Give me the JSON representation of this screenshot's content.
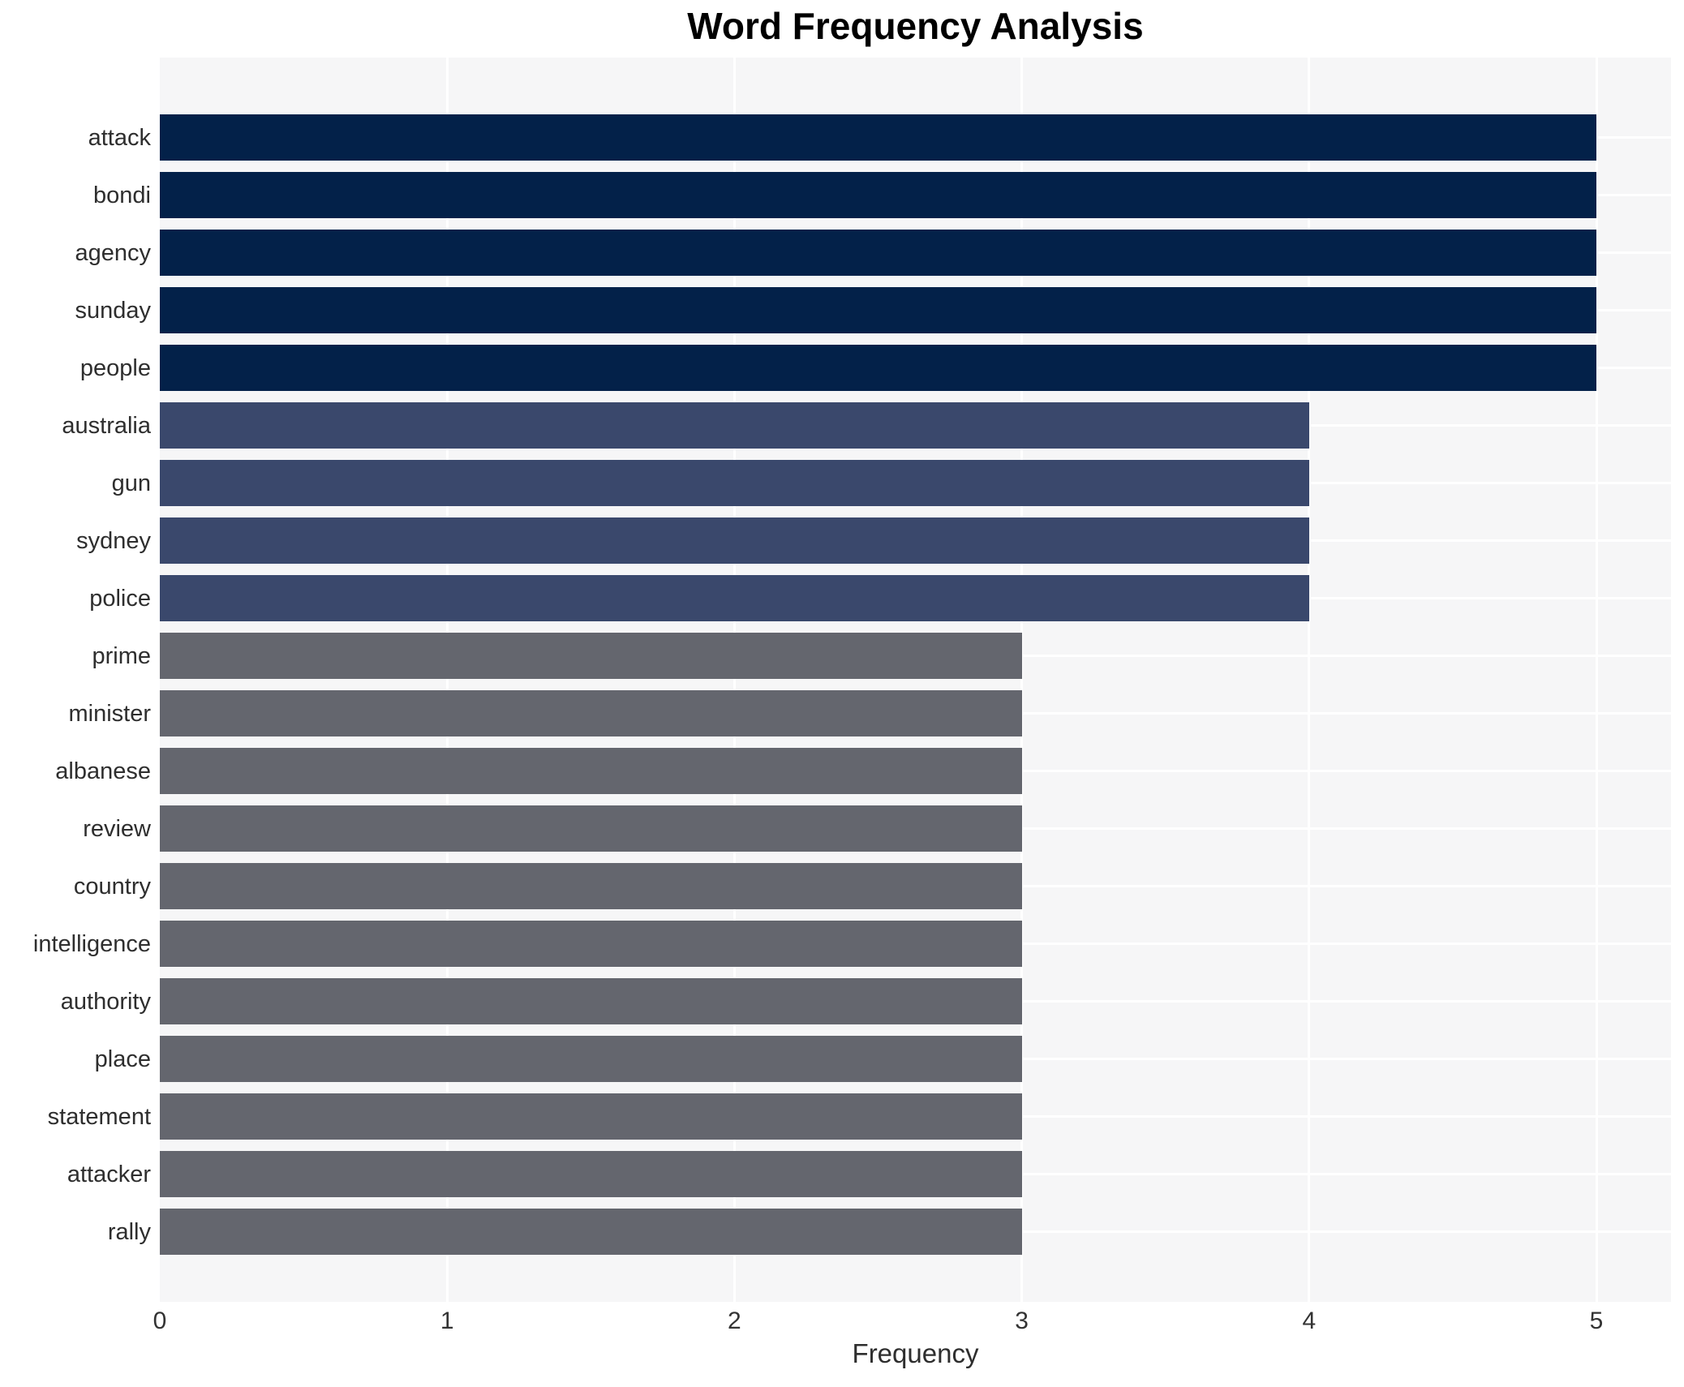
{
  "chart_data": {
    "type": "bar",
    "orientation": "horizontal",
    "title": "Word Frequency Analysis",
    "xlabel": "Frequency",
    "ylabel": "",
    "categories": [
      "attack",
      "bondi",
      "agency",
      "sunday",
      "people",
      "australia",
      "gun",
      "sydney",
      "police",
      "prime",
      "minister",
      "albanese",
      "review",
      "country",
      "intelligence",
      "authority",
      "place",
      "statement",
      "attacker",
      "rally"
    ],
    "values": [
      5,
      5,
      5,
      5,
      5,
      4,
      4,
      4,
      4,
      3,
      3,
      3,
      3,
      3,
      3,
      3,
      3,
      3,
      3,
      3
    ],
    "xlim": [
      0,
      5.26
    ],
    "xticks": [
      0,
      1,
      2,
      3,
      4,
      5
    ],
    "grid": true,
    "legend": null,
    "style": {
      "bar_colors_by_value": {
        "5": "#032149",
        "4": "#3a486c",
        "3": "#64666e"
      },
      "plot_background": "#f6f6f7",
      "gridline_color": "#ffffff",
      "tick_text_color": "#333333",
      "title_color": "#000000"
    }
  }
}
